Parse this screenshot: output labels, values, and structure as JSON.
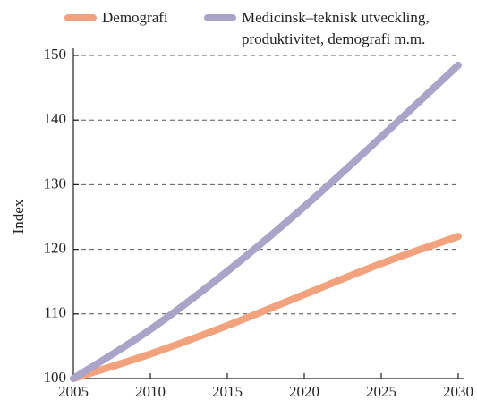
{
  "chart_data": {
    "type": "line",
    "ylabel": "Index",
    "x": [
      2005,
      2010,
      2015,
      2020,
      2025,
      2030
    ],
    "series": [
      {
        "name": "Demografi",
        "color": "#f2a27c",
        "values": [
          100,
          103.8,
          108.2,
          113,
          117.8,
          122
        ]
      },
      {
        "name": "Medicinsk–teknisk utveckling, produktivitet, demografi m.m.",
        "color": "#aaa5c8",
        "values": [
          100,
          107.6,
          116.6,
          126.6,
          137.4,
          148.5
        ]
      }
    ],
    "xlim": [
      2005,
      2030
    ],
    "xticks": [
      2005,
      2010,
      2015,
      2020,
      2025,
      2030
    ],
    "ylim": [
      100,
      150
    ],
    "yticks": [
      100,
      110,
      120,
      130,
      140,
      150
    ],
    "grid": true,
    "legend": "top"
  }
}
